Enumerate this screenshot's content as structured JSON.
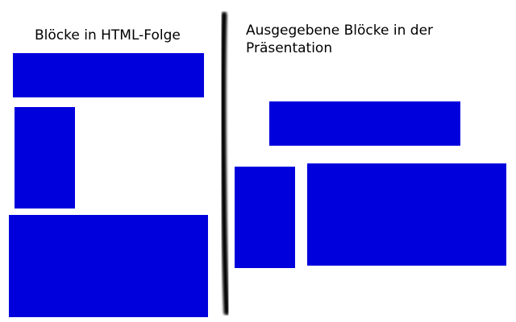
{
  "left": {
    "title": "Blöcke in HTML-Folge"
  },
  "right": {
    "title_line1": "Ausgegebene Blöcke in der",
    "title_line2": "Präsentation"
  },
  "colors": {
    "block": "#0000dc",
    "divider": "#000000",
    "background": "#ffffff"
  }
}
